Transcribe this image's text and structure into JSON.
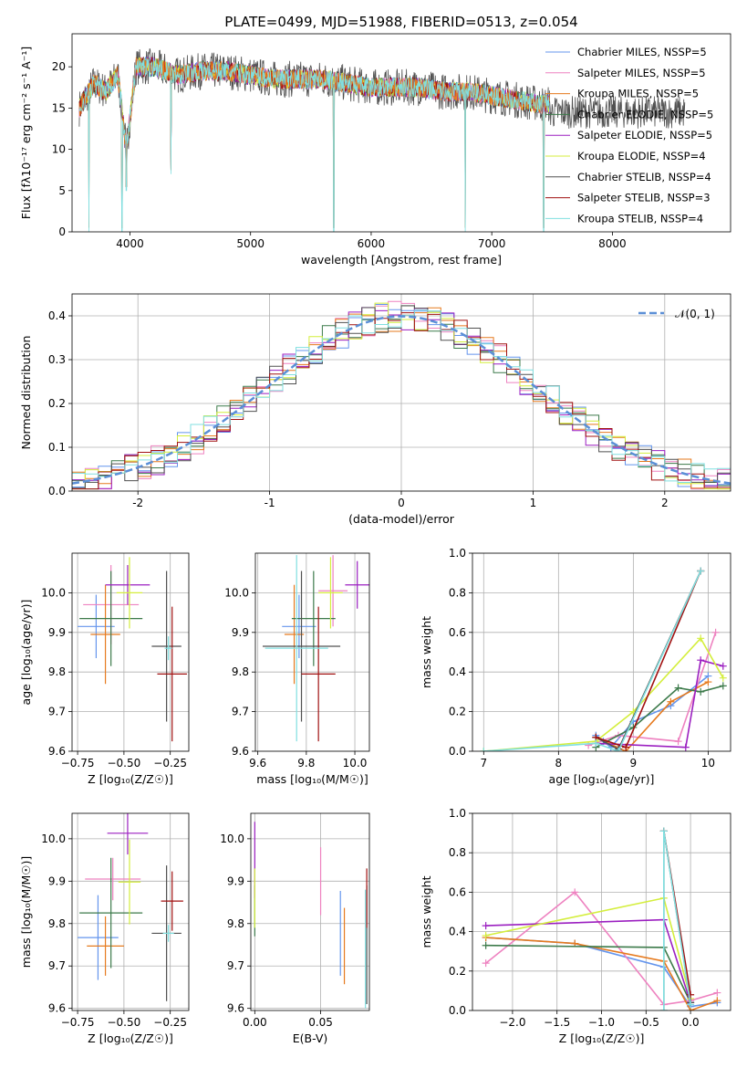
{
  "figure": {
    "title": "PLATE=0499, MJD=51988, FIBERID=0513, z=0.054"
  },
  "colors": [
    "#6495ed",
    "#ee82c0",
    "#e67a1e",
    "#3c7a4a",
    "#9b1fc0",
    "#d4ee3c",
    "#505050",
    "#a01010",
    "#80dfe0"
  ],
  "chart_data": [
    {
      "type": "line",
      "xlabel": "wavelength [Angstrom, rest frame]",
      "ylabel": "Flux [fλ10⁻¹⁷ erg cm⁻² s⁻¹ A⁻¹]",
      "xlim": [
        3520,
        8980
      ],
      "ylim": [
        0,
        24
      ],
      "xticks": [
        4000,
        5000,
        6000,
        7000,
        8000
      ],
      "yticks": [
        0,
        5,
        10,
        15,
        20
      ],
      "legend_position": "top-right",
      "legend": [
        "Chabrier MILES, NSSP=5",
        "Salpeter MILES, NSSP=5",
        "Kroupa MILES, NSSP=5",
        "Chabrier ELODIE, NSSP=5",
        "Salpeter ELODIE, NSSP=5",
        "Kroupa ELODIE, NSSP=4",
        "Chabrier STELIB, NSSP=4",
        "Salpeter STELIB, NSSP=3",
        "Kroupa STELIB, NSSP=4"
      ],
      "series_shape": {
        "x": [
          3580,
          3700,
          3800,
          3900,
          3970,
          4050,
          4200,
          4400,
          4600,
          4800,
          5000,
          5200,
          5400,
          5600,
          5800,
          6000,
          6200,
          6400,
          6600,
          6800,
          7000,
          7200,
          7400
        ],
        "y": [
          15,
          18,
          17,
          19,
          10,
          20,
          20,
          19,
          19.5,
          19.5,
          19,
          18.5,
          18.5,
          18.5,
          18,
          17.5,
          17.5,
          17.5,
          17,
          17,
          16.5,
          16,
          15.5
        ]
      }
    },
    {
      "type": "bar",
      "xlabel": "(data-model)/error",
      "ylabel": "Normed distribution",
      "xlim": [
        -2.5,
        2.5
      ],
      "ylim": [
        0,
        0.45
      ],
      "xticks": [
        -2,
        -1,
        0,
        1,
        2
      ],
      "yticks": [
        0.0,
        0.1,
        0.2,
        0.3,
        0.4
      ],
      "grid": true,
      "legend_position": "top-right",
      "legend": [
        "𝒩(0, 1)"
      ],
      "reference_curve": "normal(0,1)",
      "histogram_bin_width": 0.1
    },
    {
      "type": "scatter",
      "xlabel": "Z [log₁₀(Z/Z☉)]",
      "ylabel": "age  [log₁₀(age/yr)]",
      "xlim": [
        -0.78,
        -0.15
      ],
      "ylim": [
        9.6,
        10.1
      ],
      "xticks": [
        -0.75,
        -0.5,
        -0.25
      ],
      "xticklabels": [
        "−0.75",
        "−0.50",
        "−0.25"
      ],
      "yticks": [
        9.6,
        9.7,
        9.8,
        9.9,
        10.0
      ],
      "yticklabels": [
        "9.6",
        "9.7",
        "9.8",
        "9.9",
        "10.0"
      ],
      "grid": true,
      "points": [
        {
          "x": -0.65,
          "y": 9.915,
          "xerr": 0.1,
          "yerr": 0.08,
          "c": 0
        },
        {
          "x": -0.57,
          "y": 9.97,
          "xerr": 0.15,
          "yerr": 0.1,
          "c": 1
        },
        {
          "x": -0.6,
          "y": 9.895,
          "xerr": 0.08,
          "yerr": 0.125,
          "c": 2
        },
        {
          "x": -0.57,
          "y": 9.935,
          "xerr": 0.17,
          "yerr": 0.12,
          "c": 3
        },
        {
          "x": -0.48,
          "y": 10.02,
          "xerr": 0.12,
          "yerr": 0.05,
          "c": 4
        },
        {
          "x": -0.47,
          "y": 10.0,
          "xerr": 0.07,
          "yerr": 0.09,
          "c": 5
        },
        {
          "x": -0.27,
          "y": 9.865,
          "xerr": 0.08,
          "yerr": 0.19,
          "c": 6
        },
        {
          "x": -0.24,
          "y": 9.795,
          "xerr": 0.08,
          "yerr": 0.17,
          "c": 7
        },
        {
          "x": -0.26,
          "y": 9.86,
          "xerr": 0.02,
          "yerr": 0.03,
          "c": 8
        }
      ]
    },
    {
      "type": "scatter",
      "xlabel": "mass [log₁₀(M/M☉)]",
      "ylabel": "",
      "xlim": [
        9.59,
        10.06
      ],
      "ylim": [
        9.6,
        10.1
      ],
      "xticks": [
        9.6,
        9.8,
        10.0
      ],
      "xticklabels": [
        "9.6",
        "9.8",
        "10.0"
      ],
      "yticks": [
        9.6,
        9.7,
        9.8,
        9.9,
        10.0
      ],
      "yticklabels": [
        "9.6",
        "9.7",
        "9.8",
        "9.9",
        "10.0"
      ],
      "grid": true,
      "points": [
        {
          "x": 9.77,
          "y": 9.915,
          "xerr": 0.07,
          "yerr": 0.08,
          "c": 0
        },
        {
          "x": 9.91,
          "y": 10.005,
          "xerr": 0.06,
          "yerr": 0.09,
          "c": 1
        },
        {
          "x": 9.75,
          "y": 9.895,
          "xerr": 0.04,
          "yerr": 0.125,
          "c": 2
        },
        {
          "x": 9.83,
          "y": 9.935,
          "xerr": 0.09,
          "yerr": 0.12,
          "c": 3
        },
        {
          "x": 10.01,
          "y": 10.02,
          "xerr": 0.05,
          "yerr": 0.06,
          "c": 4
        },
        {
          "x": 9.9,
          "y": 10.0,
          "xerr": 0.05,
          "yerr": 0.09,
          "c": 5
        },
        {
          "x": 9.78,
          "y": 9.865,
          "xerr": 0.16,
          "yerr": 0.19,
          "c": 6
        },
        {
          "x": 9.85,
          "y": 9.795,
          "xerr": 0.07,
          "yerr": 0.17,
          "c": 7
        },
        {
          "x": 9.76,
          "y": 9.86,
          "xerr": 0.13,
          "yerr": 0.235,
          "c": 8
        }
      ]
    },
    {
      "type": "line",
      "xlabel": "age  [log₁₀(age/yr)]",
      "ylabel": "mass weight",
      "xlim": [
        6.85,
        10.3
      ],
      "ylim": [
        0,
        1.0
      ],
      "xticks": [
        7,
        8,
        9,
        10
      ],
      "xticklabels": [
        "7",
        "8",
        "9",
        "10"
      ],
      "yticks": [
        0,
        0.2,
        0.4,
        0.6,
        0.8,
        1.0
      ],
      "yticklabels": [
        "0.0",
        "0.2",
        "0.4",
        "0.6",
        "0.8",
        "1.0"
      ],
      "grid": true,
      "series": [
        {
          "c": 0,
          "x": [
            8.5,
            8.6,
            8.7,
            9.0,
            9.5,
            10.0
          ],
          "y": [
            0.08,
            0.05,
            0.02,
            0.15,
            0.23,
            0.38
          ]
        },
        {
          "c": 1,
          "x": [
            8.4,
            8.8,
            9.6,
            10.1
          ],
          "y": [
            0.03,
            0.08,
            0.05,
            0.6
          ]
        },
        {
          "c": 2,
          "x": [
            8.5,
            8.9,
            9.5,
            10.0
          ],
          "y": [
            0.07,
            0.0,
            0.25,
            0.35
          ]
        },
        {
          "c": 3,
          "x": [
            8.5,
            9.0,
            9.6,
            9.9,
            10.2
          ],
          "y": [
            0.02,
            0.12,
            0.32,
            0.3,
            0.33
          ]
        },
        {
          "c": 4,
          "x": [
            8.5,
            9.7,
            9.9,
            10.2
          ],
          "y": [
            0.04,
            0.02,
            0.46,
            0.43
          ]
        },
        {
          "c": 5,
          "x": [
            7.0,
            8.5,
            9.0,
            9.9,
            10.2
          ],
          "y": [
            0.0,
            0.05,
            0.2,
            0.57,
            0.37
          ]
        },
        {
          "c": 6,
          "x": [
            8.5,
            8.8,
            9.9
          ],
          "y": [
            0.07,
            0.01,
            0.91
          ]
        },
        {
          "c": 7,
          "x": [
            8.5,
            8.9,
            9.9
          ],
          "y": [
            0.07,
            0.02,
            0.91
          ]
        },
        {
          "c": 8,
          "x": [
            7.0,
            8.5,
            8.8,
            9.9
          ],
          "y": [
            0.0,
            0.04,
            0.0,
            0.91
          ]
        }
      ]
    },
    {
      "type": "scatter",
      "xlabel": "Z [log₁₀(Z/Z☉)]",
      "ylabel": "mass [log₁₀(M/M☉)]",
      "xlim": [
        -0.78,
        -0.15
      ],
      "ylim": [
        9.595,
        10.06
      ],
      "xticks": [
        -0.75,
        -0.5,
        -0.25
      ],
      "xticklabels": [
        "−0.75",
        "−0.50",
        "−0.25"
      ],
      "yticks": [
        9.6,
        9.7,
        9.8,
        9.9,
        10.0
      ],
      "yticklabels": [
        "9.6",
        "9.7",
        "9.8",
        "9.9",
        "10.0"
      ],
      "grid": true,
      "points": [
        {
          "x": -0.64,
          "y": 9.767,
          "xerr": 0.11,
          "yerr": 0.1,
          "c": 0
        },
        {
          "x": -0.56,
          "y": 9.905,
          "xerr": 0.15,
          "yerr": 0.05,
          "c": 1
        },
        {
          "x": -0.6,
          "y": 9.747,
          "xerr": 0.1,
          "yerr": 0.07,
          "c": 2
        },
        {
          "x": -0.57,
          "y": 9.825,
          "xerr": 0.17,
          "yerr": 0.13,
          "c": 3
        },
        {
          "x": -0.48,
          "y": 10.013,
          "xerr": 0.11,
          "yerr": 0.05,
          "c": 4
        },
        {
          "x": -0.47,
          "y": 9.898,
          "xerr": 0.06,
          "yerr": 0.1,
          "c": 5
        },
        {
          "x": -0.27,
          "y": 9.777,
          "xerr": 0.08,
          "yerr": 0.16,
          "c": 6
        },
        {
          "x": -0.24,
          "y": 9.853,
          "xerr": 0.06,
          "yerr": 0.07,
          "c": 7
        },
        {
          "x": -0.26,
          "y": 9.777,
          "xerr": 0.03,
          "yerr": 0.02,
          "c": 8
        }
      ]
    },
    {
      "type": "scatter",
      "xlabel": "E(B-V)",
      "ylabel": "",
      "xlim": [
        -0.003,
        0.087
      ],
      "ylim": [
        9.595,
        10.06
      ],
      "xticks": [
        0.0,
        0.05
      ],
      "xticklabels": [
        "0.00",
        "0.05"
      ],
      "yticks": [
        9.6,
        9.7,
        9.8,
        9.9,
        10.0
      ],
      "yticklabels": [
        "9.6",
        "9.7",
        "9.8",
        "9.9",
        "10.0"
      ],
      "grid": true,
      "points": [
        {
          "x": 0.065,
          "y": 9.777,
          "xerr": 0,
          "yerr": 0.1,
          "c": 0
        },
        {
          "x": 0.05,
          "y": 9.9,
          "xerr": 0,
          "yerr": 0.08,
          "c": 1
        },
        {
          "x": 0.068,
          "y": 9.747,
          "xerr": 0,
          "yerr": 0.09,
          "c": 2
        },
        {
          "x": 0.0,
          "y": 9.83,
          "xerr": 0,
          "yerr": 0.06,
          "c": 3
        },
        {
          "x": 0.0,
          "y": 9.95,
          "xerr": 0,
          "yerr": 0.09,
          "c": 4
        },
        {
          "x": 0.0,
          "y": 9.86,
          "xerr": 0,
          "yerr": 0.07,
          "c": 5
        },
        {
          "x": 0.085,
          "y": 9.75,
          "xerr": 0,
          "yerr": 0.14,
          "c": 6
        },
        {
          "x": 0.085,
          "y": 9.86,
          "xerr": 0,
          "yerr": 0.07,
          "c": 7
        },
        {
          "x": 0.084,
          "y": 9.74,
          "xerr": 0,
          "yerr": 0.14,
          "c": 8
        }
      ]
    },
    {
      "type": "line",
      "xlabel": "Z [log₁₀(Z/Z☉)]",
      "ylabel": "mass weight",
      "xlim": [
        -2.45,
        0.45
      ],
      "ylim": [
        0,
        1.0
      ],
      "xticks": [
        -2.0,
        -1.5,
        -1.0,
        -0.5,
        0.0
      ],
      "xticklabels": [
        "−2.0",
        "−1.5",
        "−1.0",
        "−0.5",
        "0.0"
      ],
      "yticks": [
        0,
        0.2,
        0.4,
        0.6,
        0.8,
        1.0
      ],
      "yticklabels": [
        "0.0",
        "0.2",
        "0.4",
        "0.6",
        "0.8",
        "1.0"
      ],
      "grid": true,
      "series": [
        {
          "c": 0,
          "x": [
            -2.3,
            -1.3,
            -0.3,
            0.0,
            0.3
          ],
          "y": [
            0.37,
            0.34,
            0.22,
            0.02,
            0.04
          ]
        },
        {
          "c": 1,
          "x": [
            -2.3,
            -1.3,
            -0.3,
            0.0,
            0.3
          ],
          "y": [
            0.24,
            0.6,
            0.03,
            0.05,
            0.09
          ]
        },
        {
          "c": 2,
          "x": [
            -2.3,
            -1.3,
            -0.3,
            0.0,
            0.3
          ],
          "y": [
            0.37,
            0.34,
            0.25,
            0.0,
            0.05
          ]
        },
        {
          "c": 3,
          "x": [
            -2.3,
            -0.3,
            0.0
          ],
          "y": [
            0.33,
            0.32,
            0.04
          ]
        },
        {
          "c": 4,
          "x": [
            -2.3,
            -0.3,
            0.0
          ],
          "y": [
            0.43,
            0.46,
            0.04
          ]
        },
        {
          "c": 5,
          "x": [
            -2.3,
            -0.3,
            0.0
          ],
          "y": [
            0.38,
            0.57,
            0.06
          ]
        },
        {
          "c": 6,
          "x": [
            -0.3,
            -0.3,
            0.0
          ],
          "y": [
            0.0,
            0.91,
            0.04
          ]
        },
        {
          "c": 7,
          "x": [
            -0.3,
            0.0
          ],
          "y": [
            0.91,
            0.08
          ]
        },
        {
          "c": 8,
          "x": [
            -0.3,
            -0.3,
            0.0
          ],
          "y": [
            0.0,
            0.91,
            0.03
          ]
        }
      ]
    }
  ]
}
